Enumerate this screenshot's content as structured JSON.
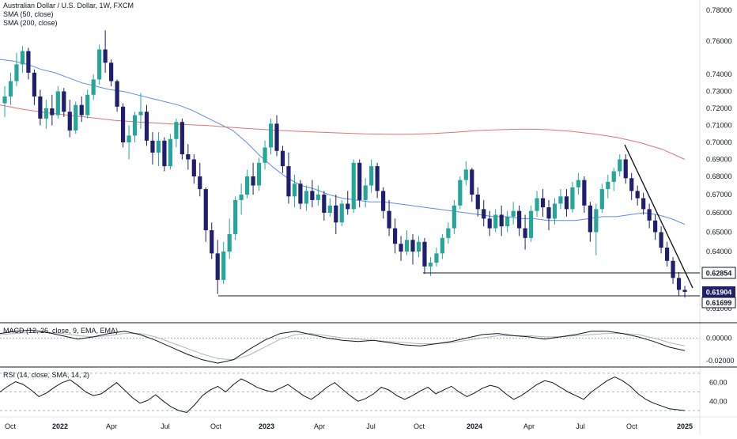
{
  "chart_data": {
    "type": "candlestick",
    "title": "Australian Dollar / U.S. Dollar, 1W, FXCM",
    "indicators": [
      "SMA (50, close)",
      "SMA (200, close)"
    ],
    "x_tick_labels": [
      "Oct",
      "2022",
      "Apr",
      "Jul",
      "Oct",
      "2023",
      "Apr",
      "Jul",
      "Oct",
      "2024",
      "Apr",
      "Jul",
      "Oct",
      "2025"
    ],
    "y_tick_labels": [
      "0.78000",
      "0.76000",
      "0.74000",
      "0.73000",
      "0.72000",
      "0.71000",
      "0.70000",
      "0.69000",
      "0.68000",
      "0.67000",
      "0.66000",
      "0.65000",
      "0.64000",
      "0.61000"
    ],
    "ylim": [
      0.61,
      0.782
    ],
    "price_labels": {
      "resistance": "0.62854",
      "current": "0.61904",
      "support": "0.61699"
    },
    "colors": {
      "up": "#26A69A",
      "down": "#1F1F6E",
      "sma50": "#5B8DEF",
      "sma200": "#E57373",
      "current_label_bg": "#1F1F6E",
      "macd_line": "#131722",
      "signal_line": "#B0B3B8",
      "rsi_line": "#131722"
    },
    "candles": [
      {
        "o": 0.723,
        "h": 0.733,
        "l": 0.715,
        "c": 0.727
      },
      {
        "o": 0.727,
        "h": 0.741,
        "l": 0.722,
        "c": 0.736
      },
      {
        "o": 0.736,
        "h": 0.753,
        "l": 0.733,
        "c": 0.746
      },
      {
        "o": 0.746,
        "h": 0.757,
        "l": 0.741,
        "c": 0.754
      },
      {
        "o": 0.754,
        "h": 0.756,
        "l": 0.737,
        "c": 0.741
      },
      {
        "o": 0.741,
        "h": 0.743,
        "l": 0.722,
        "c": 0.727
      },
      {
        "o": 0.727,
        "h": 0.731,
        "l": 0.71,
        "c": 0.714
      },
      {
        "o": 0.714,
        "h": 0.725,
        "l": 0.708,
        "c": 0.72
      },
      {
        "o": 0.72,
        "h": 0.728,
        "l": 0.71,
        "c": 0.716
      },
      {
        "o": 0.716,
        "h": 0.733,
        "l": 0.714,
        "c": 0.73
      },
      {
        "o": 0.73,
        "h": 0.732,
        "l": 0.715,
        "c": 0.718
      },
      {
        "o": 0.718,
        "h": 0.725,
        "l": 0.703,
        "c": 0.707
      },
      {
        "o": 0.707,
        "h": 0.724,
        "l": 0.705,
        "c": 0.722
      },
      {
        "o": 0.722,
        "h": 0.727,
        "l": 0.712,
        "c": 0.716
      },
      {
        "o": 0.716,
        "h": 0.731,
        "l": 0.714,
        "c": 0.728
      },
      {
        "o": 0.728,
        "h": 0.74,
        "l": 0.725,
        "c": 0.737
      },
      {
        "o": 0.737,
        "h": 0.758,
        "l": 0.734,
        "c": 0.755
      },
      {
        "o": 0.755,
        "h": 0.767,
        "l": 0.741,
        "c": 0.747
      },
      {
        "o": 0.747,
        "h": 0.749,
        "l": 0.733,
        "c": 0.736
      },
      {
        "o": 0.736,
        "h": 0.737,
        "l": 0.718,
        "c": 0.721
      },
      {
        "o": 0.721,
        "h": 0.723,
        "l": 0.697,
        "c": 0.7
      },
      {
        "o": 0.7,
        "h": 0.71,
        "l": 0.69,
        "c": 0.704
      },
      {
        "o": 0.704,
        "h": 0.718,
        "l": 0.7,
        "c": 0.716
      },
      {
        "o": 0.716,
        "h": 0.729,
        "l": 0.708,
        "c": 0.718
      },
      {
        "o": 0.718,
        "h": 0.722,
        "l": 0.698,
        "c": 0.701
      },
      {
        "o": 0.701,
        "h": 0.706,
        "l": 0.687,
        "c": 0.694
      },
      {
        "o": 0.694,
        "h": 0.706,
        "l": 0.686,
        "c": 0.701
      },
      {
        "o": 0.701,
        "h": 0.703,
        "l": 0.683,
        "c": 0.686
      },
      {
        "o": 0.686,
        "h": 0.705,
        "l": 0.684,
        "c": 0.702
      },
      {
        "o": 0.702,
        "h": 0.714,
        "l": 0.697,
        "c": 0.712
      },
      {
        "o": 0.712,
        "h": 0.714,
        "l": 0.69,
        "c": 0.693
      },
      {
        "o": 0.693,
        "h": 0.699,
        "l": 0.684,
        "c": 0.69
      },
      {
        "o": 0.69,
        "h": 0.693,
        "l": 0.676,
        "c": 0.68
      },
      {
        "o": 0.68,
        "h": 0.688,
        "l": 0.669,
        "c": 0.673
      },
      {
        "o": 0.673,
        "h": 0.674,
        "l": 0.645,
        "c": 0.651
      },
      {
        "o": 0.651,
        "h": 0.655,
        "l": 0.636,
        "c": 0.639
      },
      {
        "o": 0.639,
        "h": 0.646,
        "l": 0.618,
        "c": 0.625
      },
      {
        "o": 0.625,
        "h": 0.645,
        "l": 0.623,
        "c": 0.64
      },
      {
        "o": 0.64,
        "h": 0.657,
        "l": 0.636,
        "c": 0.649
      },
      {
        "o": 0.649,
        "h": 0.669,
        "l": 0.646,
        "c": 0.667
      },
      {
        "o": 0.667,
        "h": 0.676,
        "l": 0.659,
        "c": 0.67
      },
      {
        "o": 0.67,
        "h": 0.684,
        "l": 0.668,
        "c": 0.68
      },
      {
        "o": 0.68,
        "h": 0.688,
        "l": 0.67,
        "c": 0.675
      },
      {
        "o": 0.675,
        "h": 0.691,
        "l": 0.672,
        "c": 0.688
      },
      {
        "o": 0.688,
        "h": 0.701,
        "l": 0.684,
        "c": 0.697
      },
      {
        "o": 0.697,
        "h": 0.714,
        "l": 0.693,
        "c": 0.711
      },
      {
        "o": 0.711,
        "h": 0.716,
        "l": 0.692,
        "c": 0.695
      },
      {
        "o": 0.695,
        "h": 0.698,
        "l": 0.682,
        "c": 0.686
      },
      {
        "o": 0.686,
        "h": 0.694,
        "l": 0.665,
        "c": 0.669
      },
      {
        "o": 0.669,
        "h": 0.681,
        "l": 0.663,
        "c": 0.676
      },
      {
        "o": 0.676,
        "h": 0.678,
        "l": 0.662,
        "c": 0.665
      },
      {
        "o": 0.665,
        "h": 0.675,
        "l": 0.661,
        "c": 0.672
      },
      {
        "o": 0.672,
        "h": 0.678,
        "l": 0.663,
        "c": 0.667
      },
      {
        "o": 0.667,
        "h": 0.675,
        "l": 0.664,
        "c": 0.67
      },
      {
        "o": 0.67,
        "h": 0.672,
        "l": 0.656,
        "c": 0.66
      },
      {
        "o": 0.66,
        "h": 0.668,
        "l": 0.658,
        "c": 0.664
      },
      {
        "o": 0.664,
        "h": 0.67,
        "l": 0.649,
        "c": 0.655
      },
      {
        "o": 0.655,
        "h": 0.667,
        "l": 0.653,
        "c": 0.665
      },
      {
        "o": 0.665,
        "h": 0.672,
        "l": 0.659,
        "c": 0.662
      },
      {
        "o": 0.662,
        "h": 0.69,
        "l": 0.66,
        "c": 0.688
      },
      {
        "o": 0.688,
        "h": 0.69,
        "l": 0.663,
        "c": 0.667
      },
      {
        "o": 0.667,
        "h": 0.679,
        "l": 0.663,
        "c": 0.675
      },
      {
        "o": 0.675,
        "h": 0.69,
        "l": 0.671,
        "c": 0.686
      },
      {
        "o": 0.686,
        "h": 0.688,
        "l": 0.668,
        "c": 0.672
      },
      {
        "o": 0.672,
        "h": 0.674,
        "l": 0.657,
        "c": 0.661
      },
      {
        "o": 0.661,
        "h": 0.667,
        "l": 0.648,
        "c": 0.652
      },
      {
        "o": 0.652,
        "h": 0.657,
        "l": 0.639,
        "c": 0.644
      },
      {
        "o": 0.644,
        "h": 0.648,
        "l": 0.635,
        "c": 0.64
      },
      {
        "o": 0.64,
        "h": 0.651,
        "l": 0.638,
        "c": 0.646
      },
      {
        "o": 0.646,
        "h": 0.649,
        "l": 0.633,
        "c": 0.64
      },
      {
        "o": 0.64,
        "h": 0.648,
        "l": 0.637,
        "c": 0.645
      },
      {
        "o": 0.645,
        "h": 0.647,
        "l": 0.628,
        "c": 0.632
      },
      {
        "o": 0.632,
        "h": 0.637,
        "l": 0.627,
        "c": 0.634
      },
      {
        "o": 0.634,
        "h": 0.642,
        "l": 0.632,
        "c": 0.639
      },
      {
        "o": 0.639,
        "h": 0.649,
        "l": 0.636,
        "c": 0.647
      },
      {
        "o": 0.647,
        "h": 0.655,
        "l": 0.644,
        "c": 0.652
      },
      {
        "o": 0.652,
        "h": 0.667,
        "l": 0.649,
        "c": 0.664
      },
      {
        "o": 0.664,
        "h": 0.68,
        "l": 0.662,
        "c": 0.678
      },
      {
        "o": 0.678,
        "h": 0.689,
        "l": 0.675,
        "c": 0.684
      },
      {
        "o": 0.684,
        "h": 0.685,
        "l": 0.666,
        "c": 0.67
      },
      {
        "o": 0.67,
        "h": 0.674,
        "l": 0.658,
        "c": 0.662
      },
      {
        "o": 0.662,
        "h": 0.667,
        "l": 0.653,
        "c": 0.657
      },
      {
        "o": 0.657,
        "h": 0.661,
        "l": 0.648,
        "c": 0.652
      },
      {
        "o": 0.652,
        "h": 0.662,
        "l": 0.65,
        "c": 0.659
      },
      {
        "o": 0.659,
        "h": 0.664,
        "l": 0.648,
        "c": 0.653
      },
      {
        "o": 0.653,
        "h": 0.661,
        "l": 0.65,
        "c": 0.658
      },
      {
        "o": 0.658,
        "h": 0.666,
        "l": 0.654,
        "c": 0.661
      },
      {
        "o": 0.661,
        "h": 0.664,
        "l": 0.648,
        "c": 0.652
      },
      {
        "o": 0.652,
        "h": 0.659,
        "l": 0.641,
        "c": 0.647
      },
      {
        "o": 0.647,
        "h": 0.664,
        "l": 0.645,
        "c": 0.661
      },
      {
        "o": 0.661,
        "h": 0.672,
        "l": 0.658,
        "c": 0.668
      },
      {
        "o": 0.668,
        "h": 0.673,
        "l": 0.658,
        "c": 0.663
      },
      {
        "o": 0.663,
        "h": 0.667,
        "l": 0.651,
        "c": 0.657
      },
      {
        "o": 0.657,
        "h": 0.668,
        "l": 0.654,
        "c": 0.665
      },
      {
        "o": 0.665,
        "h": 0.673,
        "l": 0.662,
        "c": 0.669
      },
      {
        "o": 0.669,
        "h": 0.673,
        "l": 0.658,
        "c": 0.662
      },
      {
        "o": 0.662,
        "h": 0.677,
        "l": 0.66,
        "c": 0.674
      },
      {
        "o": 0.674,
        "h": 0.682,
        "l": 0.67,
        "c": 0.678
      },
      {
        "o": 0.678,
        "h": 0.68,
        "l": 0.66,
        "c": 0.664
      },
      {
        "o": 0.664,
        "h": 0.666,
        "l": 0.645,
        "c": 0.65
      },
      {
        "o": 0.65,
        "h": 0.665,
        "l": 0.638,
        "c": 0.662
      },
      {
        "o": 0.662,
        "h": 0.676,
        "l": 0.66,
        "c": 0.673
      },
      {
        "o": 0.673,
        "h": 0.681,
        "l": 0.668,
        "c": 0.677
      },
      {
        "o": 0.677,
        "h": 0.685,
        "l": 0.672,
        "c": 0.683
      },
      {
        "o": 0.683,
        "h": 0.693,
        "l": 0.68,
        "c": 0.69
      },
      {
        "o": 0.69,
        "h": 0.693,
        "l": 0.676,
        "c": 0.679
      },
      {
        "o": 0.679,
        "h": 0.682,
        "l": 0.667,
        "c": 0.672
      },
      {
        "o": 0.672,
        "h": 0.675,
        "l": 0.664,
        "c": 0.668
      },
      {
        "o": 0.668,
        "h": 0.671,
        "l": 0.659,
        "c": 0.662
      },
      {
        "o": 0.662,
        "h": 0.665,
        "l": 0.652,
        "c": 0.656
      },
      {
        "o": 0.656,
        "h": 0.659,
        "l": 0.646,
        "c": 0.65
      },
      {
        "o": 0.65,
        "h": 0.653,
        "l": 0.639,
        "c": 0.642
      },
      {
        "o": 0.642,
        "h": 0.645,
        "l": 0.632,
        "c": 0.635
      },
      {
        "o": 0.635,
        "h": 0.637,
        "l": 0.623,
        "c": 0.626
      },
      {
        "o": 0.626,
        "h": 0.629,
        "l": 0.617,
        "c": 0.62
      },
      {
        "o": 0.62,
        "h": 0.622,
        "l": 0.616,
        "c": 0.619
      }
    ],
    "sma50": [
      0.749,
      0.748,
      0.746,
      0.743,
      0.741,
      0.738,
      0.735,
      0.733,
      0.731,
      0.73,
      0.728,
      0.726,
      0.724,
      0.722,
      0.719,
      0.715,
      0.711,
      0.707,
      0.7,
      0.692,
      0.685,
      0.679,
      0.675,
      0.673,
      0.67,
      0.668,
      0.667,
      0.666,
      0.666,
      0.665,
      0.664,
      0.663,
      0.662,
      0.661,
      0.66,
      0.659,
      0.658,
      0.658,
      0.657,
      0.657,
      0.656,
      0.656,
      0.656,
      0.657,
      0.658,
      0.658,
      0.659,
      0.66,
      0.659,
      0.657,
      0.654
    ],
    "sma200": [
      0.722,
      0.7195,
      0.7175,
      0.716,
      0.7145,
      0.713,
      0.712,
      0.7112,
      0.7105,
      0.71,
      0.709,
      0.708,
      0.7072,
      0.7065,
      0.706,
      0.7055,
      0.705,
      0.7048,
      0.7048,
      0.7052,
      0.706,
      0.707,
      0.7075,
      0.7078,
      0.7075,
      0.7065,
      0.705,
      0.703,
      0.7,
      0.696,
      0.69
    ],
    "macd": {
      "label": "MACD (12, 26, close, 9, EMA, EMA)",
      "ticks": [
        "0.00000",
        "-0.02000"
      ],
      "ylim": [
        -0.024,
        0.012
      ],
      "macd_line": [
        0.004,
        0.006,
        0.007,
        0.005,
        0.002,
        -0.001,
        0.001,
        0.004,
        0.006,
        0.003,
        -0.002,
        -0.008,
        -0.014,
        -0.019,
        -0.022,
        -0.019,
        -0.01,
        -0.002,
        0.004,
        0.006,
        0.003,
        0.0,
        -0.002,
        -0.003,
        -0.002,
        -0.004,
        -0.006,
        -0.007,
        -0.005,
        -0.003,
        0.0,
        0.003,
        0.004,
        0.002,
        0.001,
        -0.001,
        0.001,
        0.003,
        0.006,
        0.006,
        0.004,
        0.001,
        -0.003,
        -0.008,
        -0.011
      ],
      "signal_line": [
        0.003,
        0.004,
        0.005,
        0.005,
        0.004,
        0.002,
        0.001,
        0.002,
        0.004,
        0.004,
        0.001,
        -0.004,
        -0.009,
        -0.014,
        -0.018,
        -0.019,
        -0.015,
        -0.008,
        -0.001,
        0.003,
        0.004,
        0.002,
        0.0,
        -0.001,
        -0.002,
        -0.003,
        -0.004,
        -0.005,
        -0.005,
        -0.004,
        -0.002,
        0.0,
        0.002,
        0.002,
        0.002,
        0.001,
        0.001,
        0.002,
        0.003,
        0.004,
        0.004,
        0.003,
        0.0,
        -0.004,
        -0.007
      ]
    },
    "rsi": {
      "label": "RSI (14, close, SMA, 14, 2)",
      "ticks": [
        "60.00",
        "40.00"
      ],
      "ylim": [
        25,
        75
      ],
      "values": [
        50,
        56,
        61,
        58,
        52,
        45,
        49,
        55,
        60,
        63,
        57,
        50,
        46,
        48,
        54,
        60,
        52,
        44,
        38,
        41,
        47,
        40,
        34,
        30,
        28,
        36,
        46,
        52,
        56,
        50,
        58,
        64,
        60,
        55,
        52,
        50,
        54,
        58,
        52,
        46,
        42,
        48,
        55,
        60,
        53,
        46,
        40,
        43,
        48,
        55,
        52,
        46,
        42,
        46,
        51,
        55,
        48,
        52,
        56,
        50,
        45,
        49,
        54,
        57,
        55,
        48,
        42,
        46,
        52,
        58,
        62,
        60,
        55,
        50,
        46,
        42,
        50,
        56,
        62,
        66,
        62,
        56,
        48,
        42,
        38,
        35,
        32,
        31,
        30
      ]
    }
  }
}
